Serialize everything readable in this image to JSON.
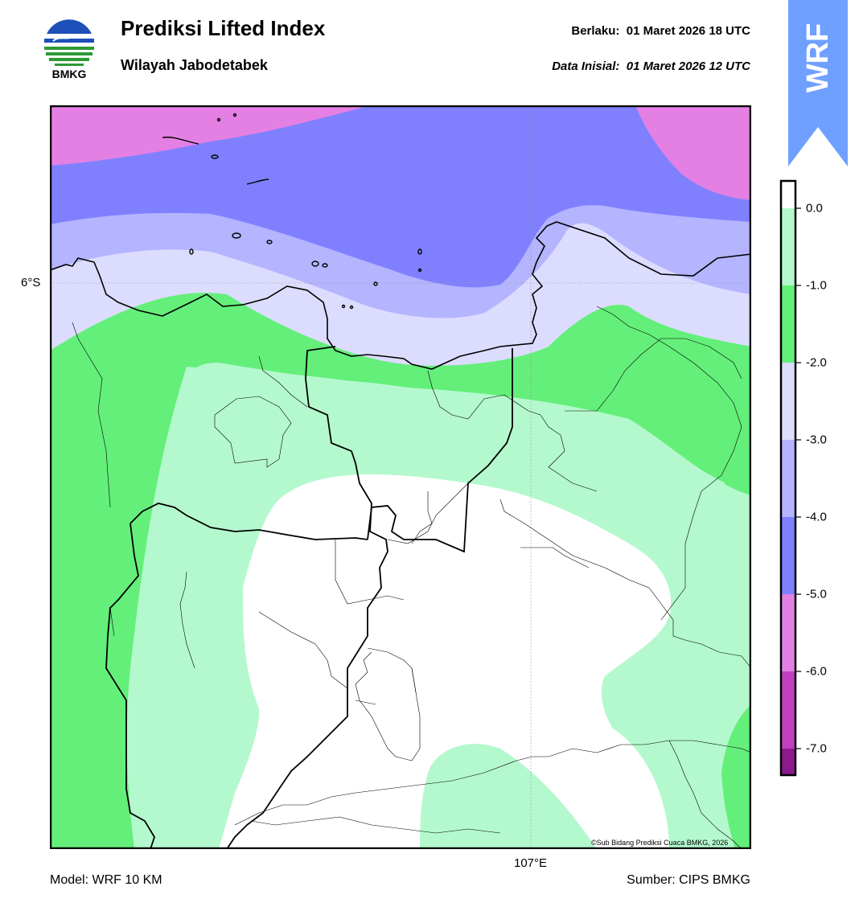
{
  "header": {
    "logo_text": "BMKG",
    "title": "Prediksi Lifted Index",
    "subtitle": "Wilayah Jabodetabek",
    "valid_label": "Berlaku:",
    "valid_time": "01 Maret 2026 18 UTC",
    "init_label": "Data Inisial:",
    "init_time": "01 Maret 2026 12 UTC",
    "model_badge": "WRF"
  },
  "map": {
    "lat_label": "6°S",
    "lon_label": "107°E",
    "credit": "©Sub Bidang Prediksi Cuaca BMKG, 2026"
  },
  "colorbar": {
    "colors": {
      "band_0_to_-1": "#b4f9cd",
      "band_-1_to_-2": "#64ef7a",
      "band_-2_to_-3": "#dcdcff",
      "band_-3_to_-4": "#b4b4ff",
      "band_-4_to_-5": "#8080ff",
      "band_-5_to_-6": "#e480e4",
      "band_-6_to_-7": "#c040c0",
      "band_-7_to_-8": "#8c1a8c"
    },
    "tick_labels": [
      "0.0",
      "-1.0",
      "-2.0",
      "-3.0",
      "-4.0",
      "-5.0",
      "-6.0",
      "-7.0"
    ]
  },
  "footer": {
    "model": "Model: WRF 10 KM",
    "source": "Sumber: CIPS BMKG"
  }
}
